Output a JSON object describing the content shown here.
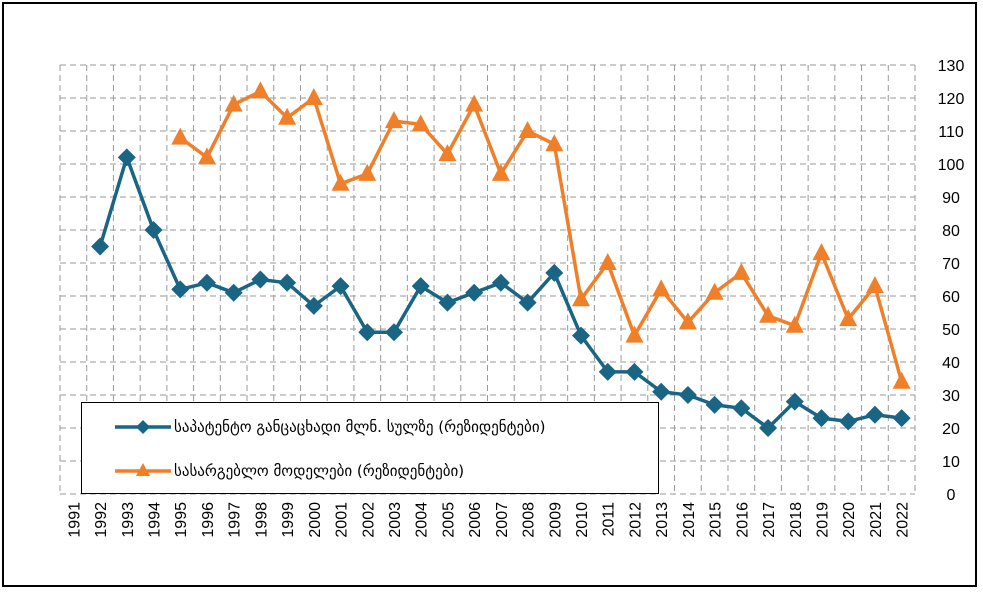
{
  "chart_data": {
    "type": "line",
    "x": [
      "1991",
      "1992",
      "1993",
      "1994",
      "1995",
      "1996",
      "1997",
      "1998",
      "1999",
      "2000",
      "2001",
      "2002",
      "2003",
      "2004",
      "2005",
      "2006",
      "2007",
      "2008",
      "2009",
      "2010",
      "2011",
      "2012",
      "2013",
      "2014",
      "2015",
      "2016",
      "2017",
      "2018",
      "2019",
      "2020",
      "2021",
      "2022"
    ],
    "ylim": [
      0,
      130
    ],
    "y_ticks": [
      0,
      10,
      20,
      30,
      40,
      50,
      60,
      70,
      80,
      90,
      100,
      110,
      120,
      130
    ],
    "y_axis_side": "right",
    "grid": true,
    "legend_position": "bottom-left",
    "series": [
      {
        "name": "საპატენტო განცაცხადი მლნ. სულზე (რეზიდენტები)",
        "color": "#1a6484",
        "marker": "diamond",
        "values": [
          null,
          75,
          102,
          80,
          62,
          64,
          61,
          65,
          64,
          57,
          63,
          49,
          49,
          63,
          58,
          61,
          64,
          58,
          67,
          48,
          37,
          37,
          31,
          30,
          27,
          26,
          20,
          28,
          23,
          22,
          24,
          23
        ]
      },
      {
        "name": "სასარგებლო მოდელები (რეზიდენტები)",
        "color": "#f07f2a",
        "marker": "triangle",
        "values": [
          null,
          null,
          null,
          null,
          108,
          102,
          118,
          122,
          114,
          120,
          94,
          97,
          113,
          112,
          103,
          118,
          97,
          110,
          106,
          59,
          70,
          48,
          62,
          52,
          61,
          67,
          54,
          51,
          73,
          53,
          63,
          34
        ]
      }
    ]
  }
}
